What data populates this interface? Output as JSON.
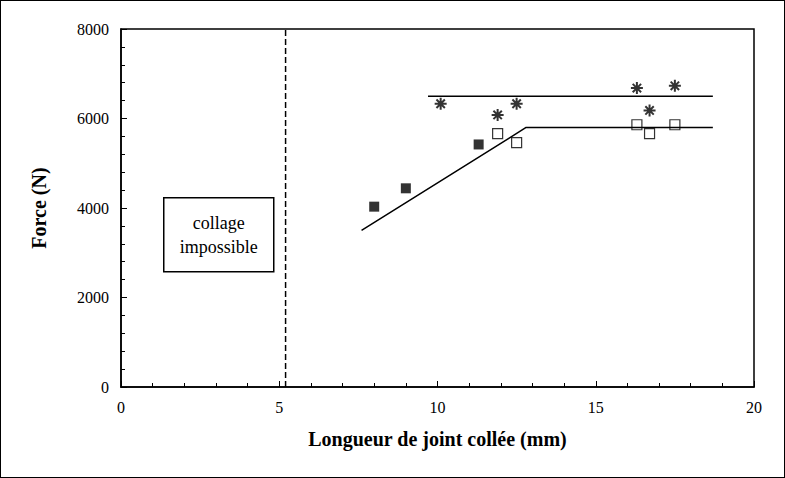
{
  "chart_data": {
    "type": "scatter",
    "x_label": "Longueur de joint collée (mm)",
    "y_label": "Force (N)",
    "xlim": [
      0,
      20
    ],
    "xticks": [
      0,
      5,
      10,
      15,
      20
    ],
    "ylim": [
      0,
      8000
    ],
    "yticks": [
      0,
      2000,
      4000,
      6000,
      8000
    ],
    "grid": false,
    "series": [
      {
        "type": "scatter",
        "marker": "square",
        "color": "#000000",
        "x": [
          8.0,
          9.0,
          11.3
        ],
        "values": [
          4030,
          4440,
          5420
        ]
      },
      {
        "type": "scatter",
        "marker": "square_open",
        "color": "#000000",
        "x": [
          11.9,
          12.5,
          16.3,
          16.7,
          17.5
        ],
        "values": [
          5660,
          5460,
          5860,
          5660,
          5860
        ]
      },
      {
        "type": "scatter",
        "marker": "asterisk",
        "color": "#000000",
        "x": [
          10.1,
          11.9,
          12.5,
          16.3,
          16.7,
          17.5
        ],
        "values": [
          6330,
          6080,
          6330,
          6680,
          6180,
          6730
        ]
      },
      {
        "type": "line",
        "line_style": "solid",
        "color": "#000000",
        "x": [
          9.7,
          18.7
        ],
        "values": [
          6500,
          6500
        ]
      },
      {
        "type": "line",
        "line_style": "solid",
        "color": "#000000",
        "x": [
          7.6,
          12.8,
          18.7
        ],
        "values": [
          3500,
          5800,
          5800
        ]
      },
      {
        "type": "line",
        "line_style": "dashed",
        "color": "#000000",
        "x": [
          5.2,
          5.2
        ],
        "values": [
          0,
          8000
        ]
      }
    ],
    "annotations": [
      {
        "text": "collage impossible"
      }
    ]
  }
}
